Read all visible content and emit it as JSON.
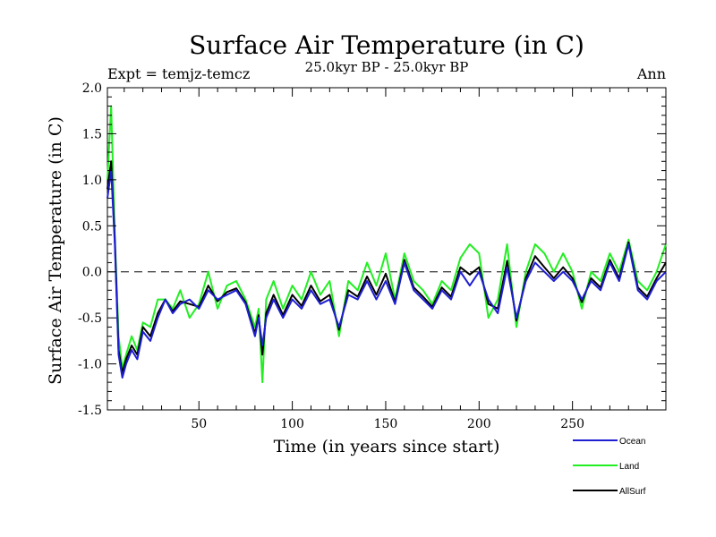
{
  "chart_data": {
    "type": "line",
    "title": "Surface Air Temperature (in C)",
    "subtitle": "25.0kyr BP - 25.0kyr BP",
    "left_label": "Expt = temjz-temcz",
    "right_label": "Ann",
    "xlabel": "Time (in years since start)",
    "ylabel": "Surface Air Temperature (in C)",
    "xlim": [
      1,
      300
    ],
    "ylim": [
      -1.5,
      2.0
    ],
    "x_ticks": [
      50,
      100,
      150,
      200,
      250
    ],
    "x_tick_labels": [
      "50",
      "100",
      "150",
      "200",
      "250"
    ],
    "y_ticks": [
      -1.5,
      -1.0,
      -0.5,
      0.0,
      0.5,
      1.0,
      1.5,
      2.0
    ],
    "y_tick_labels": [
      "-1.5",
      "-1.0",
      "-0.5",
      "0.0",
      "0.5",
      "1.0",
      "1.5",
      "2.0"
    ],
    "reference_line": 0.0,
    "x": [
      1,
      3,
      5,
      7,
      9,
      11,
      14,
      17,
      20,
      24,
      28,
      32,
      36,
      40,
      45,
      50,
      55,
      60,
      65,
      70,
      75,
      80,
      82,
      84,
      86,
      90,
      95,
      100,
      105,
      110,
      115,
      120,
      125,
      130,
      135,
      140,
      145,
      150,
      155,
      160,
      165,
      170,
      175,
      180,
      185,
      190,
      195,
      200,
      205,
      210,
      215,
      220,
      225,
      230,
      235,
      240,
      245,
      250,
      255,
      260,
      265,
      270,
      275,
      280,
      285,
      290,
      295,
      300
    ],
    "series": [
      {
        "name": "Ocean",
        "color": "#1e1ed2",
        "values": [
          0.8,
          1.1,
          0.3,
          -0.9,
          -1.15,
          -1.0,
          -0.85,
          -0.95,
          -0.65,
          -0.75,
          -0.5,
          -0.3,
          -0.45,
          -0.35,
          -0.3,
          -0.4,
          -0.2,
          -0.3,
          -0.25,
          -0.2,
          -0.35,
          -0.7,
          -0.5,
          -0.8,
          -0.5,
          -0.3,
          -0.5,
          -0.3,
          -0.4,
          -0.2,
          -0.35,
          -0.3,
          -0.6,
          -0.25,
          -0.3,
          -0.1,
          -0.3,
          -0.1,
          -0.35,
          0.1,
          -0.2,
          -0.3,
          -0.4,
          -0.2,
          -0.3,
          0.0,
          -0.15,
          0.0,
          -0.3,
          -0.45,
          0.05,
          -0.5,
          -0.1,
          0.1,
          0.0,
          -0.1,
          0.0,
          -0.1,
          -0.3,
          -0.1,
          -0.2,
          0.1,
          -0.1,
          0.3,
          -0.2,
          -0.3,
          -0.1,
          0.0
        ]
      },
      {
        "name": "Land",
        "color": "#22ee22",
        "values": [
          1.0,
          1.8,
          0.4,
          -0.7,
          -1.05,
          -0.9,
          -0.7,
          -0.85,
          -0.55,
          -0.6,
          -0.3,
          -0.3,
          -0.4,
          -0.2,
          -0.5,
          -0.35,
          0.0,
          -0.4,
          -0.15,
          -0.1,
          -0.3,
          -0.6,
          -0.4,
          -1.2,
          -0.3,
          -0.1,
          -0.4,
          -0.15,
          -0.3,
          0.0,
          -0.25,
          -0.1,
          -0.7,
          -0.1,
          -0.2,
          0.1,
          -0.15,
          0.2,
          -0.3,
          0.2,
          -0.1,
          -0.2,
          -0.35,
          -0.1,
          -0.2,
          0.15,
          0.3,
          0.2,
          -0.5,
          -0.3,
          0.3,
          -0.6,
          0.0,
          0.3,
          0.2,
          0.0,
          0.2,
          0.0,
          -0.4,
          0.0,
          -0.1,
          0.2,
          0.0,
          0.35,
          -0.1,
          -0.2,
          0.0,
          0.3
        ]
      },
      {
        "name": "AllSurf",
        "color": "#000000",
        "values": [
          0.9,
          1.2,
          0.35,
          -0.85,
          -1.1,
          -0.95,
          -0.8,
          -0.9,
          -0.6,
          -0.7,
          -0.45,
          -0.3,
          -0.43,
          -0.32,
          -0.35,
          -0.38,
          -0.15,
          -0.32,
          -0.22,
          -0.18,
          -0.33,
          -0.67,
          -0.47,
          -0.9,
          -0.45,
          -0.25,
          -0.47,
          -0.25,
          -0.37,
          -0.15,
          -0.32,
          -0.25,
          -0.63,
          -0.2,
          -0.27,
          -0.05,
          -0.25,
          -0.02,
          -0.33,
          0.13,
          -0.17,
          -0.27,
          -0.38,
          -0.17,
          -0.27,
          0.05,
          -0.03,
          0.05,
          -0.35,
          -0.4,
          0.12,
          -0.53,
          -0.07,
          0.17,
          0.05,
          -0.07,
          0.05,
          -0.07,
          -0.33,
          -0.07,
          -0.17,
          0.13,
          -0.07,
          0.32,
          -0.17,
          -0.27,
          -0.07,
          0.1
        ]
      }
    ],
    "legend": {
      "position": "bottom-right",
      "entries": [
        "Ocean",
        "Land",
        "AllSurf"
      ]
    }
  }
}
